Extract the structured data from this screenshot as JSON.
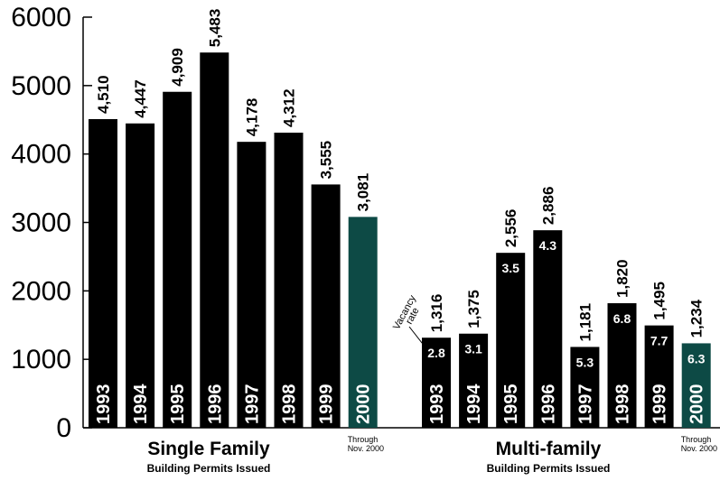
{
  "chart_data": {
    "type": "bar",
    "ylim": [
      0,
      6000
    ],
    "yticks": [
      0,
      1000,
      2000,
      3000,
      4000,
      5000,
      6000
    ],
    "colors": {
      "regular": "#000000",
      "partial": "#0d4a45"
    },
    "groups": [
      {
        "title": "Single Family",
        "subtitle": "Building Permits Issued",
        "categories": [
          "1993",
          "1994",
          "1995",
          "1996",
          "1997",
          "1998",
          "1999",
          "2000"
        ],
        "values": [
          4510,
          4447,
          4909,
          5483,
          4178,
          4312,
          3555,
          3081
        ],
        "value_labels": [
          "4,510",
          "4,447",
          "4,909",
          "5,483",
          "4,178",
          "4,312",
          "3,555",
          "3,081"
        ],
        "partial_note": [
          "Through",
          "Nov. 2000"
        ]
      },
      {
        "title": "Multi-family",
        "subtitle": "Building Permits Issued",
        "categories": [
          "1993",
          "1994",
          "1995",
          "1996",
          "1997",
          "1998",
          "1999",
          "2000"
        ],
        "values": [
          1316,
          1375,
          2556,
          2886,
          1181,
          1820,
          1495,
          1234
        ],
        "value_labels": [
          "1,316",
          "1,375",
          "2,556",
          "2,886",
          "1,181",
          "1,820",
          "1,495",
          "1,234"
        ],
        "vacancy_rate": [
          "2.8",
          "3.1",
          "3.5",
          "4.3",
          "5.3",
          "6.8",
          "7.7",
          "6.3"
        ],
        "vacancy_label": [
          "Vacancy",
          "rate"
        ],
        "partial_note": [
          "Through",
          "Nov. 2000"
        ]
      }
    ]
  }
}
